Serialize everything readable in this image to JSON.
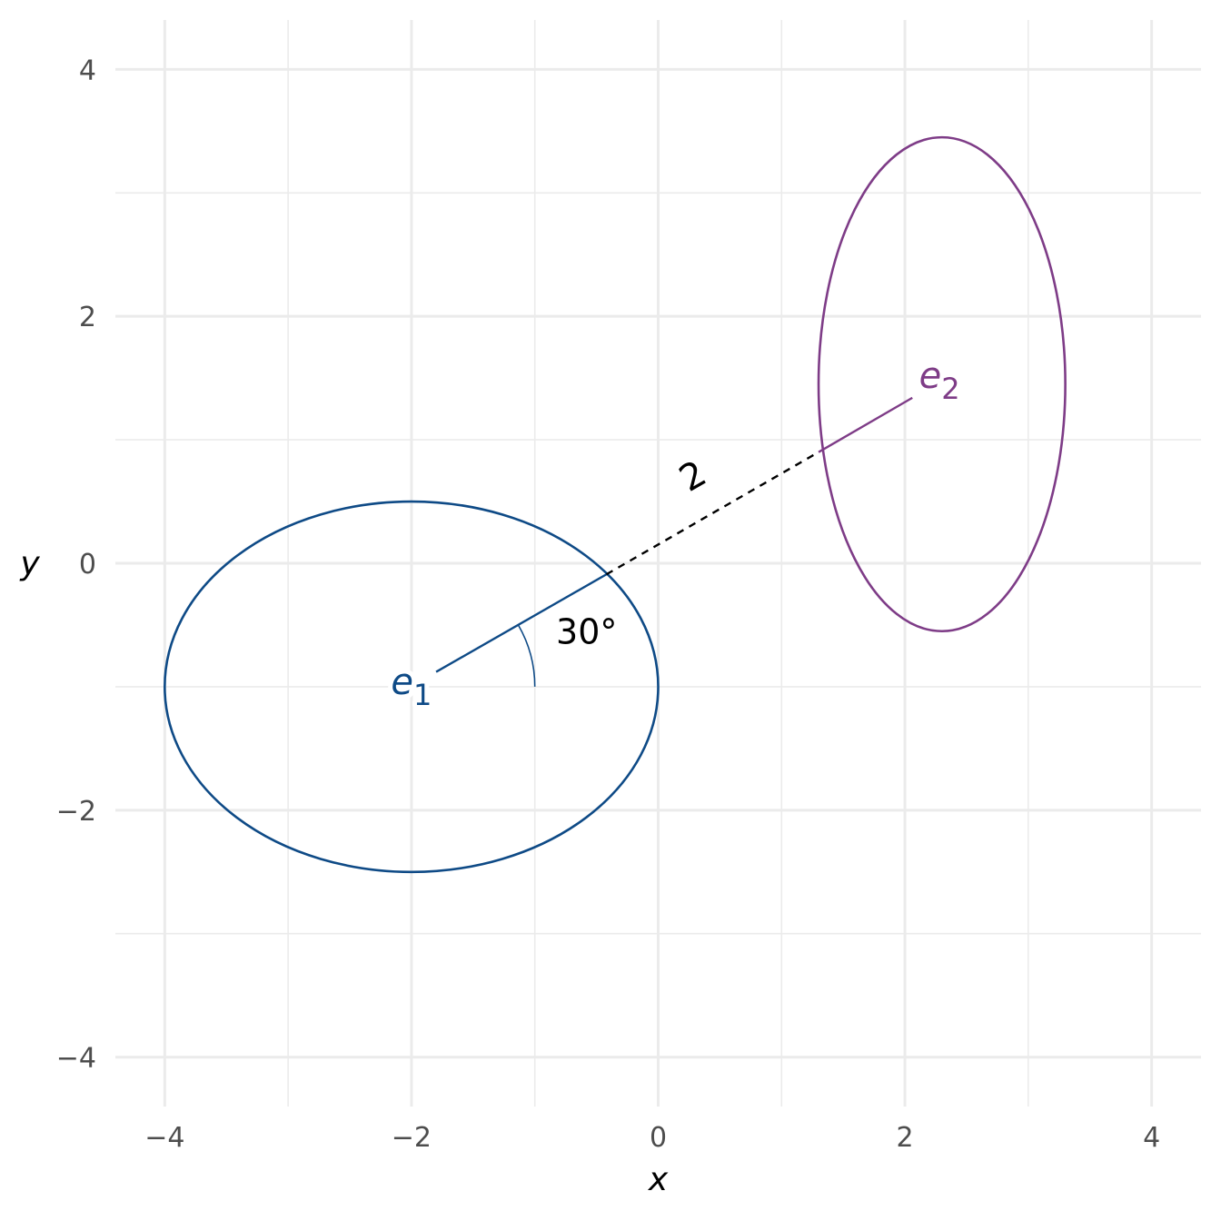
{
  "chart_data": {
    "type": "geometric-diagram",
    "xlabel": "x",
    "ylabel": "y",
    "xlim": [
      -4.4,
      4.4
    ],
    "ylim": [
      -4.4,
      4.4
    ],
    "x_ticks": [
      -4,
      -2,
      0,
      2,
      4
    ],
    "y_ticks": [
      -4,
      -2,
      0,
      2,
      4
    ],
    "x_tick_labels": [
      "−4",
      "−2",
      "0",
      "2",
      "4"
    ],
    "y_tick_labels": [
      "−4",
      "−2",
      "0",
      "2",
      "4"
    ],
    "x_minor": [
      -3,
      -1,
      1,
      3
    ],
    "y_minor": [
      -3,
      -1,
      1,
      3
    ],
    "colors": {
      "e1": "#0e4a86",
      "e2": "#7e3c87",
      "connector": "#000000"
    },
    "ellipses": [
      {
        "name": "e1",
        "label_main": "e",
        "label_sub": "1",
        "center": [
          -2,
          -1
        ],
        "semi_x": 2,
        "semi_y": 1.5
      },
      {
        "name": "e2",
        "label_main": "e",
        "label_sub": "2",
        "center": [
          2.3,
          1.45
        ],
        "semi_x": 1.0,
        "semi_y": 2.0
      }
    ],
    "connector": {
      "from": [
        -2,
        -1
      ],
      "angle_deg": 30,
      "e1_boundary": [
        -0.42,
        -0.09
      ],
      "e2_boundary": [
        1.3,
        0.9
      ],
      "e2_segment_end": [
        2.06,
        1.34
      ],
      "e1_segment_start": [
        -1.8,
        -0.88
      ],
      "distance_label": "2",
      "distance_label_pos": [
        0.33,
        0.62
      ]
    },
    "angle_arc": {
      "center": [
        -2,
        -1
      ],
      "radius": 1,
      "label": "30°",
      "label_pos": [
        -0.58,
        -0.65
      ]
    }
  }
}
